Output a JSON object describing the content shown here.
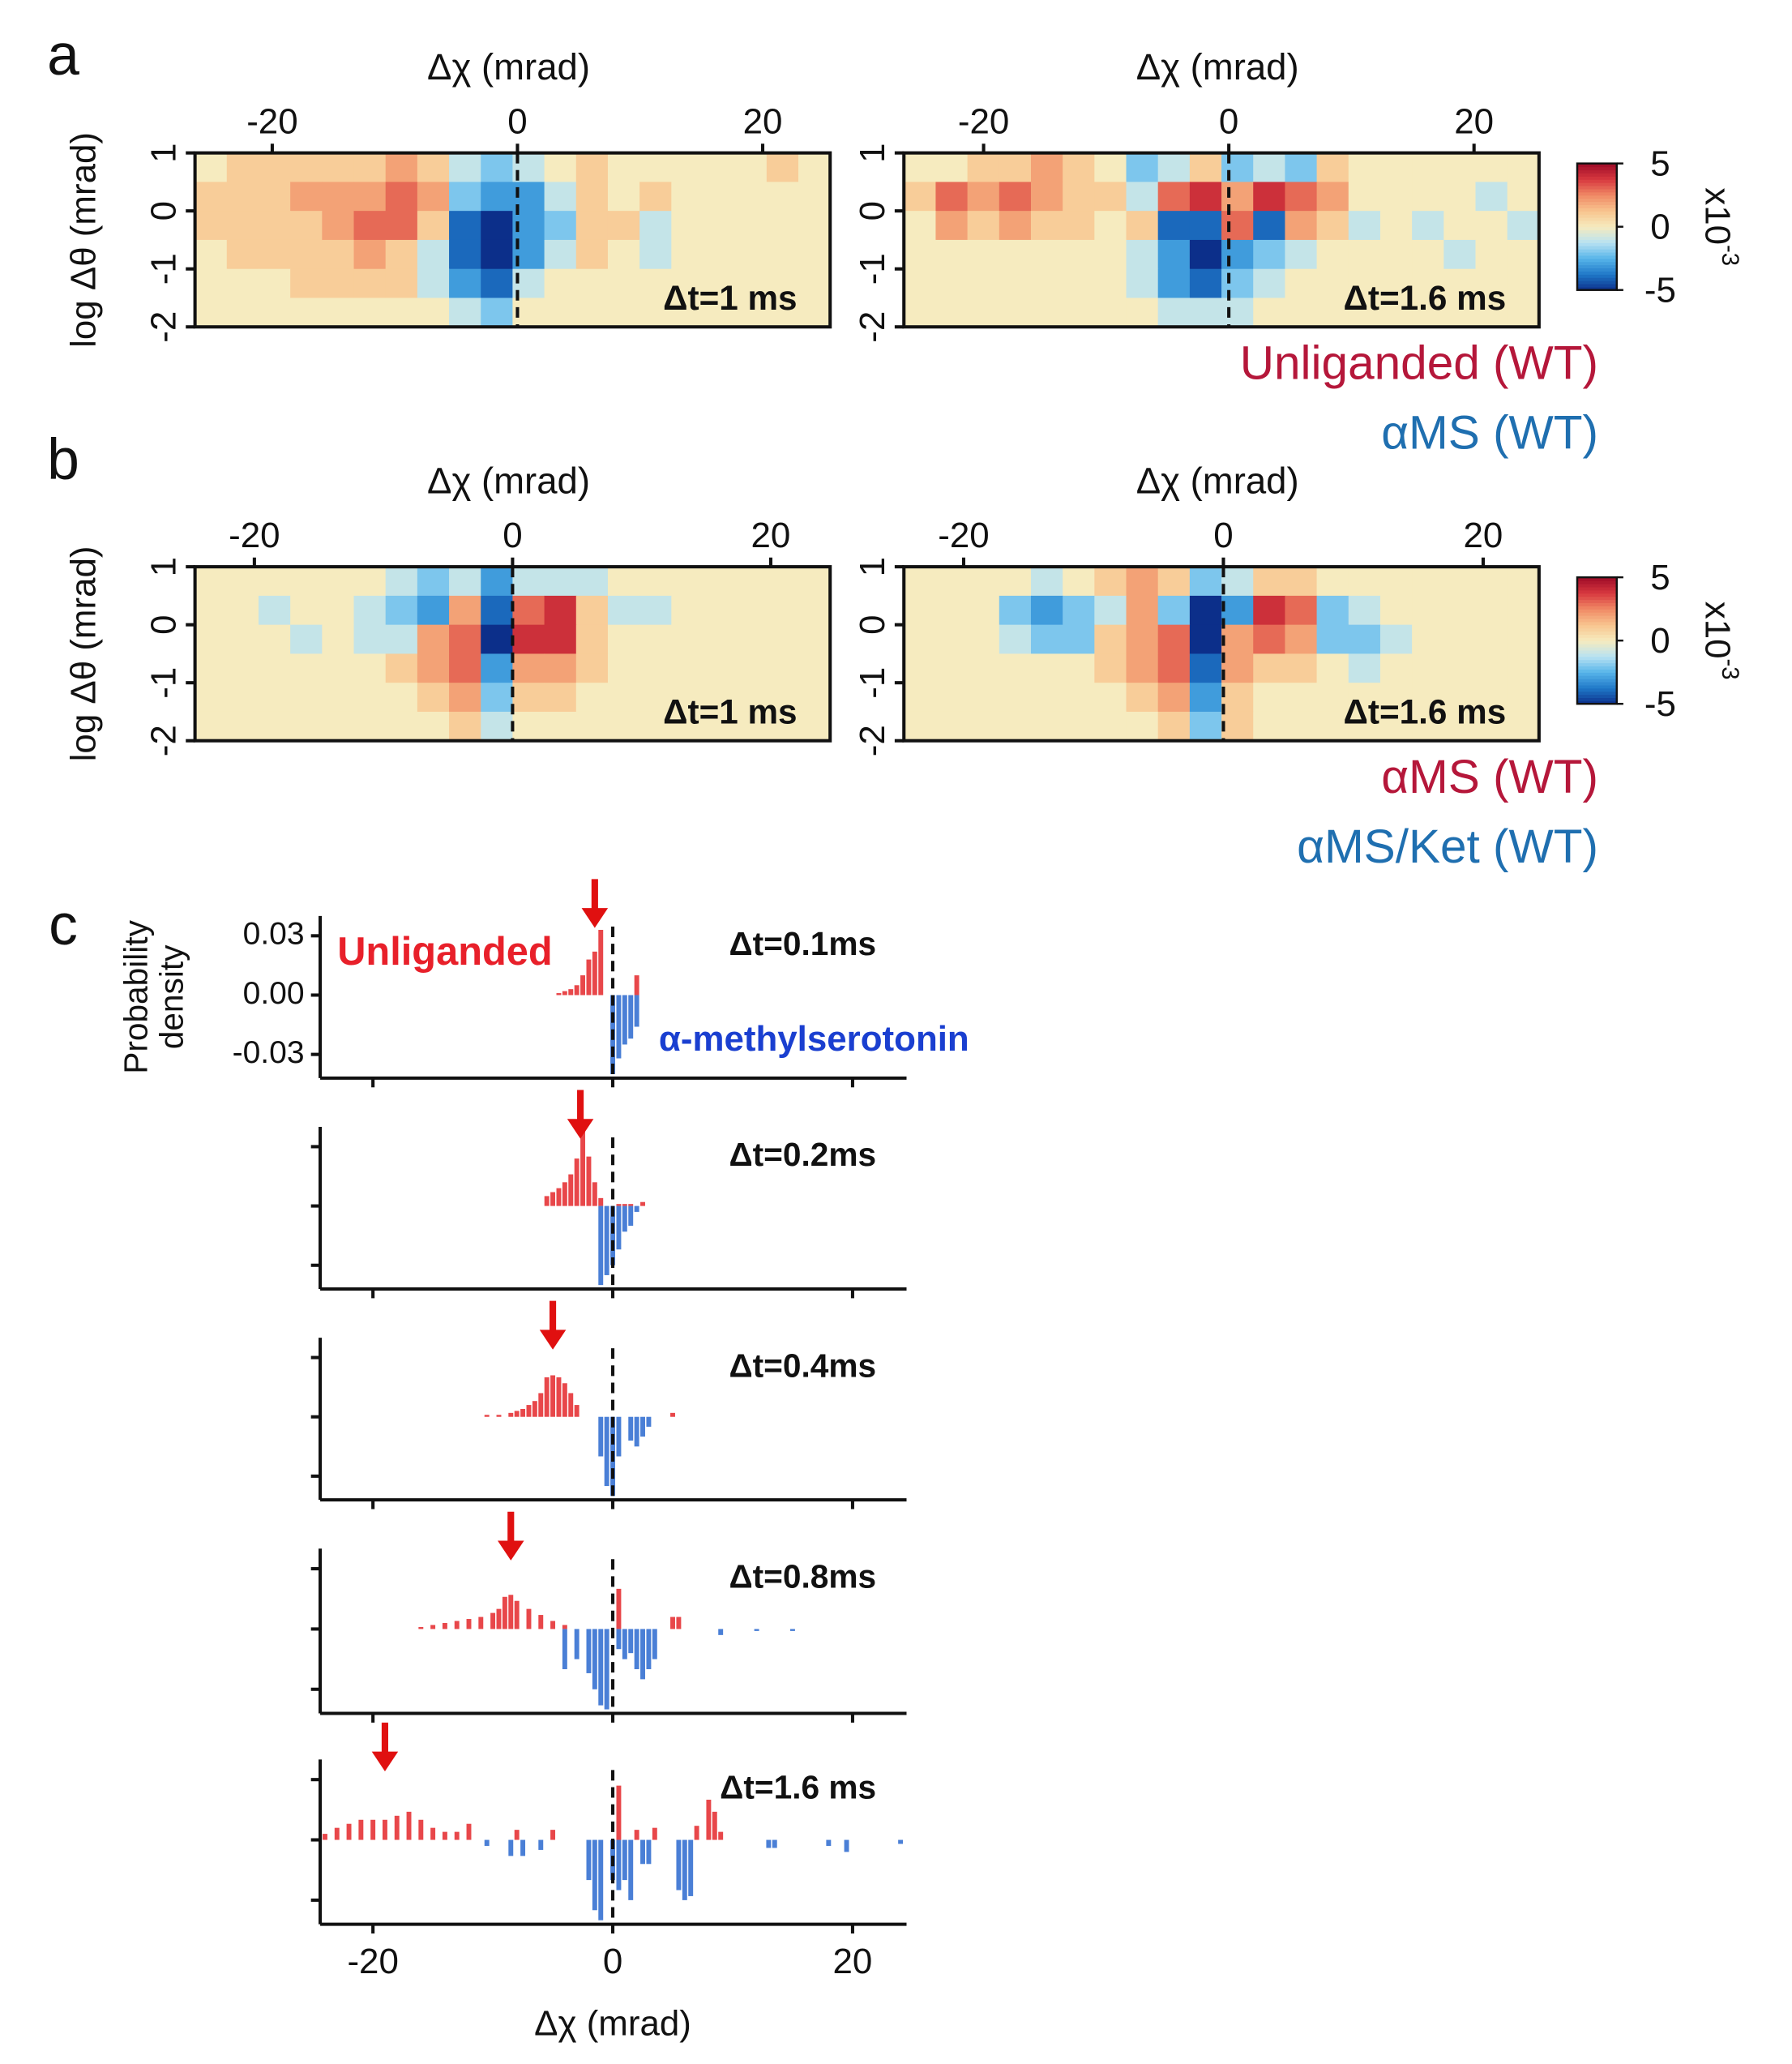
{
  "panel_labels": [
    "a",
    "b",
    "c"
  ],
  "chart_data": [
    {
      "type": "heatmap",
      "xlabel": "Δχ (mrad)",
      "ylabel": "log Δθ (mrad)",
      "annotation": "Δt=1 ms",
      "xlim": [
        -26.3,
        25.5
      ],
      "xticks": [
        -20,
        0,
        20
      ],
      "ylim": [
        -2,
        1
      ],
      "yticks": [
        1,
        0,
        -1,
        -2
      ],
      "vline": 0,
      "zlim": [
        -5,
        5
      ],
      "colormap": [
        "#0c2f8a",
        "#1f78c8",
        "#56b4e9",
        "#b8e2f2",
        "#f6ebbf",
        "#f8c58f",
        "#f08a66",
        "#d8393f",
        "#9e0b28"
      ],
      "z": [
        [
          0,
          1,
          1,
          1,
          1,
          1,
          2,
          1,
          -1,
          -2,
          -1,
          0,
          1,
          0,
          0,
          0,
          0,
          0,
          1,
          0
        ],
        [
          1,
          1,
          1,
          2,
          2,
          2,
          3,
          2,
          -2,
          -3,
          -3,
          -1,
          1,
          0,
          1,
          0,
          0,
          0,
          0,
          0
        ],
        [
          1,
          1,
          1,
          1,
          2,
          3,
          3,
          1,
          -4,
          -5,
          -3,
          -2,
          1,
          1,
          -1,
          0,
          0,
          0,
          0,
          0
        ],
        [
          0,
          1,
          1,
          1,
          1,
          2,
          1,
          -1,
          -4,
          -5,
          -3,
          -1,
          1,
          0,
          -1,
          0,
          0,
          0,
          0,
          0
        ],
        [
          0,
          0,
          0,
          1,
          1,
          1,
          1,
          -1,
          -3,
          -4,
          -1,
          0,
          0,
          0,
          0,
          0,
          0,
          0,
          0,
          0
        ],
        [
          0,
          0,
          0,
          0,
          0,
          0,
          0,
          0,
          -1,
          -2,
          0,
          0,
          0,
          0,
          0,
          0,
          0,
          0,
          0,
          0
        ]
      ]
    },
    {
      "type": "heatmap",
      "xlabel": "Δχ (mrad)",
      "annotation": "Δt=1.6 ms",
      "xlim": [
        -26.5,
        25.3
      ],
      "xticks": [
        -20,
        0,
        20
      ],
      "ylim": [
        -2,
        1
      ],
      "yticks": [
        1,
        0,
        -1,
        -2
      ],
      "vline": 0,
      "zlim": [
        -5,
        5
      ],
      "colormap": [
        "#0c2f8a",
        "#1f78c8",
        "#56b4e9",
        "#b8e2f2",
        "#f6ebbf",
        "#f8c58f",
        "#f08a66",
        "#d8393f",
        "#9e0b28"
      ],
      "colorbar": {
        "ticks": [
          5,
          0,
          -5
        ],
        "label": "x10",
        "exponent": "-3"
      },
      "legend": [
        {
          "name": "Unliganded (WT)",
          "color": "#b5173a"
        },
        {
          "name": "αMS (WT)",
          "color": "#1f6fb0"
        }
      ],
      "z": [
        [
          0,
          0,
          1,
          1,
          2,
          1,
          0,
          -2,
          -1,
          1,
          -2,
          -1,
          -2,
          1,
          0,
          0,
          0,
          0,
          0,
          0
        ],
        [
          1,
          3,
          2,
          3,
          2,
          1,
          1,
          -1,
          3,
          4,
          2,
          4,
          3,
          2,
          0,
          0,
          0,
          0,
          -1,
          0
        ],
        [
          0,
          2,
          1,
          2,
          1,
          1,
          0,
          1,
          -4,
          -4,
          3,
          -4,
          2,
          1,
          -1,
          0,
          -1,
          0,
          0,
          -1
        ],
        [
          0,
          0,
          0,
          0,
          0,
          0,
          0,
          -1,
          -3,
          -5,
          -3,
          -2,
          -1,
          0,
          0,
          0,
          0,
          -1,
          0,
          0
        ],
        [
          0,
          0,
          0,
          0,
          0,
          0,
          0,
          -1,
          -3,
          -4,
          -2,
          -1,
          0,
          0,
          0,
          0,
          0,
          0,
          0,
          0
        ],
        [
          0,
          0,
          0,
          0,
          0,
          0,
          0,
          0,
          -1,
          -1,
          -1,
          0,
          0,
          0,
          0,
          0,
          0,
          0,
          0,
          0
        ]
      ]
    },
    {
      "type": "heatmap",
      "xlabel": "Δχ (mrad)",
      "ylabel": "log Δθ (mrad)",
      "annotation": "Δt=1 ms",
      "xlim": [
        -24.6,
        24.6
      ],
      "xticks": [
        -20,
        0,
        20
      ],
      "ylim": [
        -2,
        1
      ],
      "yticks": [
        1,
        0,
        -1,
        -2
      ],
      "vline": 0,
      "zlim": [
        -5,
        5
      ],
      "colormap": [
        "#0c2f8a",
        "#1f78c8",
        "#56b4e9",
        "#b8e2f2",
        "#f6ebbf",
        "#f8c58f",
        "#f08a66",
        "#d8393f",
        "#9e0b28"
      ],
      "z": [
        [
          0,
          0,
          0,
          0,
          0,
          0,
          -1,
          -2,
          -1,
          -3,
          -1,
          -1,
          -1,
          0,
          0,
          0,
          0,
          0,
          0,
          0
        ],
        [
          0,
          0,
          -1,
          0,
          0,
          -1,
          -2,
          -3,
          2,
          -4,
          3,
          4,
          1,
          -1,
          -1,
          0,
          0,
          0,
          0,
          0
        ],
        [
          0,
          0,
          0,
          -1,
          0,
          -1,
          -1,
          2,
          3,
          -5,
          4,
          4,
          1,
          0,
          0,
          0,
          0,
          0,
          0,
          0
        ],
        [
          0,
          0,
          0,
          0,
          0,
          0,
          1,
          2,
          3,
          -3,
          2,
          2,
          1,
          0,
          0,
          0,
          0,
          0,
          0,
          0
        ],
        [
          0,
          0,
          0,
          0,
          0,
          0,
          0,
          1,
          2,
          -2,
          1,
          1,
          0,
          0,
          0,
          0,
          0,
          0,
          0,
          0
        ],
        [
          0,
          0,
          0,
          0,
          0,
          0,
          0,
          0,
          1,
          -1,
          0,
          0,
          0,
          0,
          0,
          0,
          0,
          0,
          0,
          0
        ]
      ]
    },
    {
      "type": "heatmap",
      "xlabel": "Δχ (mrad)",
      "annotation": "Δt=1.6 ms",
      "xlim": [
        -24.6,
        24.3
      ],
      "xticks": [
        -20,
        0,
        20
      ],
      "ylim": [
        -2,
        1
      ],
      "yticks": [
        1,
        0,
        -1,
        -2
      ],
      "vline": 0,
      "zlim": [
        -5,
        5
      ],
      "colormap": [
        "#0c2f8a",
        "#1f78c8",
        "#56b4e9",
        "#b8e2f2",
        "#f6ebbf",
        "#f8c58f",
        "#f08a66",
        "#d8393f",
        "#9e0b28"
      ],
      "colorbar": {
        "ticks": [
          5,
          0,
          -5
        ],
        "label": "x10",
        "exponent": "-3"
      },
      "legend": [
        {
          "name": "αMS (WT)",
          "color": "#b5173a"
        },
        {
          "name": "αMS/Ket (WT)",
          "color": "#1f6fb0"
        }
      ],
      "z": [
        [
          0,
          0,
          0,
          0,
          -1,
          0,
          1,
          2,
          1,
          -2,
          -1,
          1,
          1,
          0,
          0,
          0,
          0,
          0,
          0,
          0
        ],
        [
          0,
          0,
          0,
          -2,
          -3,
          -2,
          -1,
          2,
          -2,
          -5,
          -3,
          4,
          3,
          -2,
          -1,
          0,
          0,
          0,
          0,
          0
        ],
        [
          0,
          0,
          0,
          -1,
          -2,
          -2,
          1,
          2,
          3,
          -5,
          2,
          3,
          2,
          -2,
          -2,
          -1,
          0,
          0,
          0,
          0
        ],
        [
          0,
          0,
          0,
          0,
          0,
          0,
          1,
          2,
          3,
          -4,
          2,
          1,
          1,
          0,
          -1,
          0,
          0,
          0,
          0,
          0
        ],
        [
          0,
          0,
          0,
          0,
          0,
          0,
          0,
          1,
          2,
          -3,
          1,
          0,
          0,
          0,
          0,
          0,
          0,
          0,
          0,
          0
        ],
        [
          0,
          0,
          0,
          0,
          0,
          0,
          0,
          0,
          1,
          -2,
          1,
          0,
          0,
          0,
          0,
          0,
          0,
          0,
          0,
          0
        ]
      ]
    },
    {
      "type": "histogram",
      "ylabel": [
        "Probability",
        "density"
      ],
      "annotation": "Δt=0.1ms",
      "ytick_labels": true,
      "xlim": [
        -24.4,
        24.5
      ],
      "xticks": [
        -20,
        0,
        20
      ],
      "ylim": [
        -0.042,
        0.04
      ],
      "yticks": [
        0.03,
        {
          "value": 0,
          "label": "0.00"
        },
        -0.03
      ],
      "vline": 0,
      "arrow_x": -1.5,
      "arrow_color": "#e01010",
      "series": [
        {
          "name": "Unliganded",
          "color": "#e8474a",
          "label_color": "#e8202a",
          "x": [
            -4.5,
            -4,
            -3.5,
            -3,
            -2.5,
            -2,
            -1.5,
            -1,
            2
          ],
          "values": [
            0.001,
            0.002,
            0.003,
            0.005,
            0.01,
            0.018,
            0.022,
            0.033,
            0.01
          ]
        },
        {
          "name": "α-methylserotonin",
          "color": "#4a7fd6",
          "label_color": "#1a3fd0",
          "x": [
            0,
            0.5,
            1,
            1.5,
            2
          ],
          "values": [
            -0.04,
            -0.032,
            -0.025,
            -0.022,
            -0.016
          ]
        }
      ]
    },
    {
      "type": "histogram",
      "annotation": "Δt=0.2ms",
      "xlim": [
        -24.4,
        24.5
      ],
      "xticks": [
        -20,
        0,
        20
      ],
      "ylim": [
        -0.042,
        0.04
      ],
      "yticks": [
        0.03,
        0,
        -0.03
      ],
      "vline": 0,
      "arrow_x": -2.7,
      "arrow_color": "#e01010",
      "series": [
        {
          "color": "#e8474a",
          "x": [
            -5.5,
            -5,
            -4.5,
            -4,
            -3.5,
            -3,
            -2.5,
            -2,
            -1.5,
            -1,
            0.5,
            1,
            1.5,
            2.5
          ],
          "values": [
            0.005,
            0.007,
            0.009,
            0.012,
            0.016,
            0.024,
            0.038,
            0.025,
            0.012,
            0.004,
            0.001,
            0.001,
            0.001,
            0.002
          ]
        },
        {
          "color": "#4a7fd6",
          "x": [
            -1,
            -0.5,
            0,
            0.5,
            1,
            1.5,
            2
          ],
          "values": [
            -0.04,
            -0.035,
            -0.03,
            -0.022,
            -0.013,
            -0.01,
            -0.003
          ]
        }
      ]
    },
    {
      "type": "histogram",
      "annotation": "Δt=0.4ms",
      "xlim": [
        -24.4,
        24.5
      ],
      "xticks": [
        -20,
        0,
        20
      ],
      "ylim": [
        -0.042,
        0.04
      ],
      "yticks": [
        0.03,
        0,
        -0.03
      ],
      "vline": 0,
      "arrow_x": -5,
      "arrow_color": "#e01010",
      "series": [
        {
          "color": "#e8474a",
          "x": [
            -10.5,
            -9.5,
            -8.5,
            -8,
            -7.5,
            -7,
            -6.5,
            -6,
            -5.5,
            -5,
            -4.5,
            -4,
            -3.5,
            -3,
            5
          ],
          "values": [
            0.001,
            0.001,
            0.002,
            0.003,
            0.004,
            0.006,
            0.008,
            0.012,
            0.02,
            0.021,
            0.02,
            0.017,
            0.012,
            0.006,
            0.002
          ]
        },
        {
          "color": "#4a7fd6",
          "x": [
            -1,
            -0.5,
            0,
            0.5,
            1.5,
            2,
            2.5,
            3
          ],
          "values": [
            -0.02,
            -0.035,
            -0.04,
            -0.02,
            -0.012,
            -0.015,
            -0.01,
            -0.005
          ]
        }
      ]
    },
    {
      "type": "histogram",
      "annotation": "Δt=0.8ms",
      "xlim": [
        -24.4,
        24.5
      ],
      "xticks": [
        -20,
        0,
        20
      ],
      "ylim": [
        -0.042,
        0.04
      ],
      "yticks": [
        0.03,
        0,
        -0.03
      ],
      "vline": 0,
      "arrow_x": -8.5,
      "arrow_color": "#e01010",
      "series": [
        {
          "color": "#e8474a",
          "x": [
            -16,
            -15,
            -14,
            -13,
            -12,
            -11,
            -10,
            -9.5,
            -9,
            -8.5,
            -8,
            -7,
            -6,
            -5,
            -4,
            0.5,
            5,
            5.5
          ],
          "values": [
            0.001,
            0.002,
            0.003,
            0.004,
            0.005,
            0.006,
            0.008,
            0.01,
            0.016,
            0.017,
            0.014,
            0.01,
            0.007,
            0.004,
            0.002,
            0.02,
            0.006,
            0.006
          ]
        },
        {
          "color": "#4a7fd6",
          "x": [
            -4,
            -3,
            -2,
            -1.5,
            -1,
            -0.5,
            0.5,
            1,
            1.5,
            2,
            2.5,
            3,
            3.5,
            9,
            12,
            15
          ],
          "values": [
            -0.02,
            -0.015,
            -0.022,
            -0.03,
            -0.038,
            -0.04,
            -0.01,
            -0.015,
            -0.012,
            -0.02,
            -0.025,
            -0.02,
            -0.015,
            -0.003,
            -0.001,
            -0.001
          ]
        }
      ]
    },
    {
      "type": "histogram",
      "annotation": "Δt=1.6 ms",
      "xlabel": "Δχ (mrad)",
      "xtick_labels": true,
      "xlim": [
        -24.4,
        24.5
      ],
      "xticks": [
        -20,
        0,
        20
      ],
      "ylim": [
        -0.042,
        0.04
      ],
      "yticks": [
        0.03,
        0,
        -0.03
      ],
      "vline": 0,
      "arrow_x": -19,
      "arrow_color": "#e01010",
      "series": [
        {
          "color": "#e8474a",
          "x": [
            -24,
            -23,
            -22,
            -21,
            -20,
            -19,
            -18,
            -17,
            -16,
            -15,
            -14,
            -13,
            -12,
            -8,
            -5,
            0.5,
            2,
            3.5,
            7,
            8,
            8.5,
            9
          ],
          "values": [
            0.003,
            0.006,
            0.008,
            0.01,
            0.01,
            0.01,
            0.012,
            0.014,
            0.01,
            0.006,
            0.004,
            0.004,
            0.008,
            0.005,
            0.005,
            0.027,
            0.005,
            0.006,
            0.007,
            0.02,
            0.014,
            0.004
          ]
        },
        {
          "color": "#4a7fd6",
          "x": [
            -10.5,
            -8.5,
            -7.5,
            -6,
            -2,
            -1.5,
            -1,
            0,
            0.5,
            1,
            1.5,
            2.5,
            3,
            5.5,
            6,
            6.5,
            13,
            13.5,
            18,
            19.5,
            24
          ],
          "values": [
            -0.003,
            -0.008,
            -0.008,
            -0.005,
            -0.02,
            -0.035,
            -0.04,
            -0.02,
            -0.025,
            -0.02,
            -0.03,
            -0.012,
            -0.012,
            -0.025,
            -0.03,
            -0.028,
            -0.004,
            -0.004,
            -0.003,
            -0.006,
            -0.002
          ]
        }
      ]
    }
  ]
}
